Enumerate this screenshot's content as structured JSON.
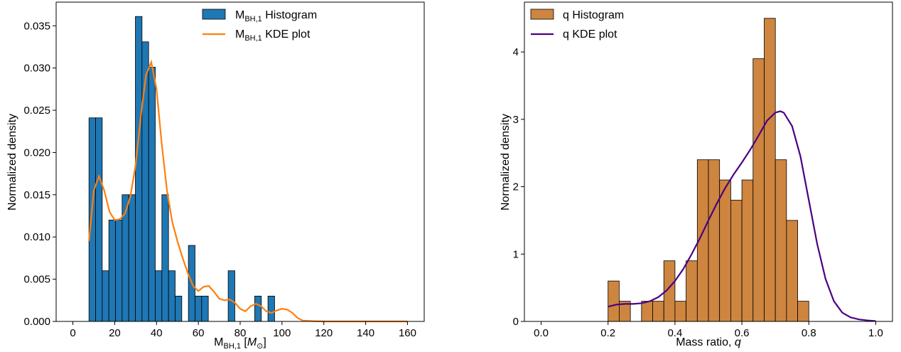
{
  "chart_data": [
    {
      "type": "bar",
      "subtype": "histogram-with-kde",
      "xlabel": "M_BH,1 [M☉]",
      "ylabel": "Normalized density",
      "xlim": [
        -8,
        168
      ],
      "ylim": [
        0,
        0.0378
      ],
      "xticks": [
        0,
        20,
        40,
        60,
        80,
        100,
        120,
        140,
        160
      ],
      "yticks": [
        0.0,
        0.005,
        0.01,
        0.015,
        0.02,
        0.025,
        0.03,
        0.035
      ],
      "ytick_labels": [
        "0.000",
        "0.005",
        "0.010",
        "0.015",
        "0.020",
        "0.025",
        "0.030",
        "0.035"
      ],
      "grid": false,
      "legend_position": "top-center",
      "colors": {
        "hist": "#1f77b4",
        "kde": "#ff7f0e",
        "edge": "#000000"
      },
      "series": [
        {
          "name": "M_BH,1 Histogram",
          "kind": "histogram",
          "bin_edges": [
            7.7,
            10.87,
            14.04,
            17.21,
            20.38,
            23.55,
            26.72,
            29.89,
            33.06,
            36.23,
            39.4,
            42.57,
            45.74,
            48.91,
            52.08,
            55.25,
            58.42,
            61.59,
            64.76,
            67.93,
            71.1,
            74.27,
            77.44,
            80.61,
            83.78,
            86.95,
            90.12,
            93.29,
            96.46,
            99.63,
            102.8,
            105.97,
            109.14
          ],
          "values": [
            0.0241,
            0.0241,
            0.006,
            0.012,
            0.012,
            0.015,
            0.015,
            0.0361,
            0.0331,
            0.0301,
            0.006,
            0.015,
            0.006,
            0.003,
            0.0,
            0.009,
            0.003,
            0.003,
            0.0,
            0.0,
            0.0,
            0.006,
            0.0,
            0.0,
            0.0,
            0.003,
            0.0,
            0.003,
            0.0,
            0.0,
            0.0,
            0.0
          ]
        },
        {
          "name": "M_BH,1 KDE plot",
          "kind": "kde",
          "x": [
            7.7,
            10,
            12.5,
            15,
            17.5,
            20,
            22.5,
            25,
            27.5,
            30,
            32.5,
            35,
            37.5,
            40,
            42.5,
            45,
            47.5,
            50,
            52.5,
            55,
            57.5,
            60,
            62.5,
            65,
            67.5,
            70,
            72.5,
            75,
            77.5,
            80,
            82.5,
            85,
            87.5,
            90,
            92.5,
            95,
            97.5,
            100,
            102.5,
            105,
            107.5,
            110,
            115,
            120,
            130,
            140,
            150,
            160
          ],
          "y": [
            0.0095,
            0.0155,
            0.0172,
            0.0155,
            0.013,
            0.012,
            0.0121,
            0.0128,
            0.0148,
            0.0185,
            0.0243,
            0.0292,
            0.0307,
            0.0275,
            0.021,
            0.0155,
            0.0118,
            0.0095,
            0.0075,
            0.0057,
            0.0042,
            0.0036,
            0.0041,
            0.0042,
            0.0035,
            0.0027,
            0.0025,
            0.0026,
            0.0022,
            0.0015,
            0.0012,
            0.0018,
            0.0021,
            0.0018,
            0.0012,
            0.001,
            0.0013,
            0.0015,
            0.0014,
            0.001,
            0.0004,
            0.0001,
            3e-05,
            0.0,
            0.0,
            0.0,
            0.0,
            0.0
          ]
        }
      ]
    },
    {
      "type": "bar",
      "subtype": "histogram-with-kde",
      "xlabel": "Mass ratio, q",
      "ylabel": "Normalized density",
      "xlim": [
        -0.05,
        1.05
      ],
      "ylim": [
        0,
        4.74
      ],
      "xticks": [
        0.0,
        0.2,
        0.4,
        0.6,
        0.8,
        1.0
      ],
      "xtick_labels": [
        "0.0",
        "0.2",
        "0.4",
        "0.6",
        "0.8",
        "1.0"
      ],
      "yticks": [
        0,
        1,
        2,
        3,
        4
      ],
      "ytick_labels": [
        "0",
        "1",
        "2",
        "3",
        "4"
      ],
      "grid": false,
      "legend_position": "top-left",
      "colors": {
        "hist": "#cd853f",
        "kde": "#4b0082",
        "edge": "#000000"
      },
      "series": [
        {
          "name": "q Histogram",
          "kind": "histogram",
          "bin_edges": [
            0.2,
            0.2333,
            0.2667,
            0.3,
            0.3333,
            0.3667,
            0.4,
            0.4333,
            0.4667,
            0.5,
            0.5333,
            0.5667,
            0.6,
            0.6333,
            0.6667,
            0.7,
            0.7333,
            0.7667,
            0.8,
            0.8333,
            0.8667
          ],
          "values": [
            0.6,
            0.3,
            0.0,
            0.3,
            0.3,
            0.9,
            0.3,
            0.9,
            2.4,
            2.4,
            2.1,
            1.8,
            2.1,
            3.9,
            4.5,
            2.4,
            1.5,
            0.3,
            0.0,
            0.0
          ]
        },
        {
          "name": "q KDE plot",
          "kind": "kde",
          "x": [
            0.2,
            0.225,
            0.25,
            0.275,
            0.3,
            0.325,
            0.35,
            0.375,
            0.4,
            0.425,
            0.45,
            0.475,
            0.5,
            0.525,
            0.55,
            0.575,
            0.6,
            0.625,
            0.65,
            0.675,
            0.7,
            0.715,
            0.725,
            0.75,
            0.775,
            0.8,
            0.825,
            0.85,
            0.875,
            0.9,
            0.925,
            0.95,
            0.975,
            1.0
          ],
          "y": [
            0.22,
            0.25,
            0.26,
            0.26,
            0.27,
            0.3,
            0.36,
            0.46,
            0.6,
            0.78,
            1.0,
            1.24,
            1.5,
            1.75,
            1.98,
            2.18,
            2.36,
            2.55,
            2.76,
            2.98,
            3.1,
            3.12,
            3.1,
            2.9,
            2.45,
            1.8,
            1.15,
            0.63,
            0.3,
            0.13,
            0.06,
            0.03,
            0.015,
            0.005
          ]
        }
      ]
    }
  ]
}
